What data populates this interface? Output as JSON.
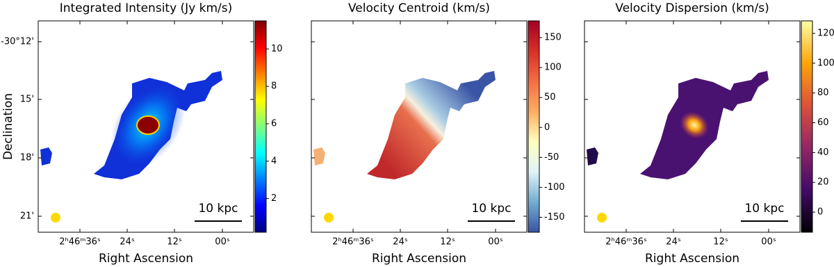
{
  "chart_data": [
    {
      "type": "image",
      "title": "Integrated Intensity (Jy km/s)",
      "xlabel": "Right Ascension",
      "ylabel": "Declination",
      "xticklabels": [
        "2ʰ46ᵐ36ˢ",
        "24ˢ",
        "12ˢ",
        "00ˢ"
      ],
      "yticklabels": [
        "-30°12'",
        "15'",
        "18'",
        "21'"
      ],
      "scalebar": "10 kpc",
      "colorbar": {
        "ylim": [
          0.2,
          11.5
        ],
        "yticks": [
          2,
          4,
          6,
          8,
          10
        ],
        "colormap": [
          "#00007f",
          "#0000ff",
          "#007fff",
          "#00ffff",
          "#7fff7f",
          "#ffff00",
          "#ff7f00",
          "#ff0000",
          "#7f0000"
        ]
      }
    },
    {
      "type": "image",
      "title": "Velocity Centroid (km/s)",
      "xlabel": "Right Ascension",
      "xticklabels": [
        "2ʰ46ᵐ36ˢ",
        "24ˢ",
        "12ˢ",
        "00ˢ"
      ],
      "scalebar": "10 kpc",
      "colorbar": {
        "ylim": [
          -175,
          178
        ],
        "yticks": [
          -150,
          -100,
          -50,
          0,
          50,
          100,
          150
        ],
        "colormap": [
          "#3953a4",
          "#74add1",
          "#e0f3f8",
          "#ffffbf",
          "#fdae61",
          "#f46d43",
          "#d73027",
          "#a50026"
        ]
      }
    },
    {
      "type": "image",
      "title": "Velocity Dispersion (km/s)",
      "xlabel": "Right Ascension",
      "xticklabels": [
        "2ʰ46ᵐ36ˢ",
        "24ˢ",
        "12ˢ",
        "00ˢ"
      ],
      "scalebar": "10 kpc",
      "colorbar": {
        "ylim": [
          -13.5,
          128.4
        ],
        "yticks": [
          0,
          20,
          40,
          60,
          80,
          100,
          120
        ],
        "colormap": [
          "#000004",
          "#420a68",
          "#932667",
          "#dd513a",
          "#fca50a",
          "#fcffa4"
        ]
      }
    }
  ]
}
